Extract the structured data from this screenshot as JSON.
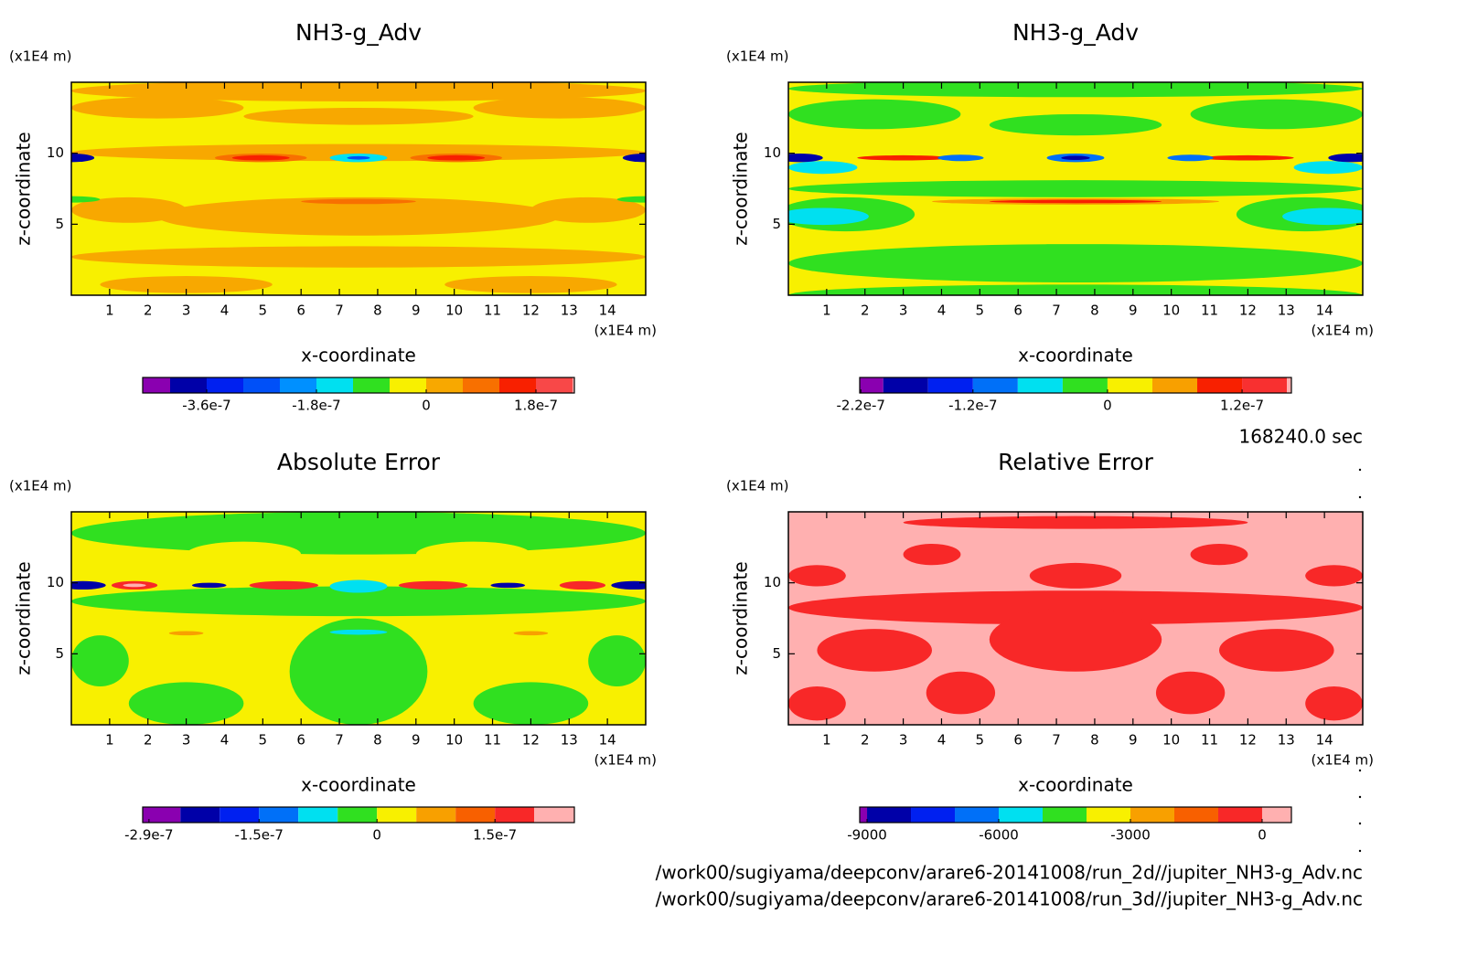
{
  "chart_data": [
    {
      "type": "contour",
      "title": "NH3-g_Adv",
      "xlabel": "x-coordinate",
      "ylabel": "z-coordinate",
      "xunit": "(x1E4 m)",
      "yunit": "(x1E4 m)",
      "xlim": [
        0,
        15
      ],
      "ylim": [
        0,
        15
      ],
      "xticks": [
        1,
        2,
        3,
        4,
        5,
        6,
        7,
        8,
        9,
        10,
        11,
        12,
        13,
        14
      ],
      "yticks": [
        5,
        10
      ],
      "colorbar": {
        "lim": [
          -4.65e-07,
          2.43e-07
        ],
        "levels": [
          -4.2e-07,
          -3.6e-07,
          -3e-07,
          -2.4e-07,
          -1.8e-07,
          -1.2e-07,
          -6e-08,
          0,
          6e-08,
          1.2e-07,
          1.8e-07,
          2.4e-07
        ],
        "colors": [
          "#8a00b0",
          "#0000a8",
          "#0020f0",
          "#0050f8",
          "#0090ff",
          "#00e0f0",
          "#30e020",
          "#f8f000",
          "#f8a800",
          "#f87000",
          "#f82000",
          "#f84848",
          "#ffb0b0"
        ],
        "ticks": [
          -3.6e-07,
          -1.8e-07,
          0,
          1.8e-07
        ]
      }
    },
    {
      "type": "contour",
      "title": "NH3-g_Adv",
      "xlabel": "x-coordinate",
      "ylabel": "z-coordinate",
      "xunit": "(x1E4 m)",
      "yunit": "(x1E4 m)",
      "xlim": [
        0,
        15
      ],
      "ylim": [
        0,
        15
      ],
      "xticks": [
        1,
        2,
        3,
        4,
        5,
        6,
        7,
        8,
        9,
        10,
        11,
        12,
        13,
        14
      ],
      "yticks": [
        5,
        10
      ],
      "colorbar": {
        "lim": [
          -2.21e-07,
          1.64e-07
        ],
        "levels": [
          -2e-07,
          -1.6e-07,
          -1.2e-07,
          -8e-08,
          -4e-08,
          0,
          4e-08,
          8e-08,
          1.2e-07,
          1.6e-07
        ],
        "colors": [
          "#8a00b0",
          "#0000a8",
          "#0020f0",
          "#0070f8",
          "#00e0f0",
          "#30e020",
          "#f8f000",
          "#f8a000",
          "#f82000",
          "#f83030",
          "#ffb0b0"
        ],
        "ticks": [
          -2.2e-07,
          -1.2e-07,
          0,
          1.2e-07
        ]
      }
    },
    {
      "type": "contour",
      "title": "Absolute Error",
      "xlabel": "x-coordinate",
      "ylabel": "z-coordinate",
      "xunit": "(x1E4 m)",
      "yunit": "(x1E4 m)",
      "xlim": [
        0,
        15
      ],
      "ylim": [
        0,
        15
      ],
      "xticks": [
        1,
        2,
        3,
        4,
        5,
        6,
        7,
        8,
        9,
        10,
        11,
        12,
        13,
        14
      ],
      "yticks": [
        5,
        10
      ],
      "colorbar": {
        "lim": [
          -2.98e-07,
          2.51e-07
        ],
        "levels": [
          -2.5e-07,
          -2e-07,
          -1.5e-07,
          -1e-07,
          -5e-08,
          0,
          5e-08,
          1e-07,
          1.5e-07,
          2e-07
        ],
        "colors": [
          "#8a00b0",
          "#0000a8",
          "#0020f0",
          "#0070f8",
          "#00e0f0",
          "#30e020",
          "#f8f000",
          "#f8a000",
          "#f86000",
          "#f82828",
          "#ffb0b0"
        ],
        "ticks": [
          -2.9e-07,
          -1.5e-07,
          0,
          1.5e-07
        ]
      }
    },
    {
      "type": "contour",
      "title": "Relative Error",
      "xlabel": "x-coordinate",
      "ylabel": "z-coordinate",
      "xunit": "(x1E4 m)",
      "yunit": "(x1E4 m)",
      "xlim": [
        0,
        15
      ],
      "ylim": [
        0,
        15
      ],
      "xticks": [
        1,
        2,
        3,
        4,
        5,
        6,
        7,
        8,
        9,
        10,
        11,
        12,
        13,
        14
      ],
      "yticks": [
        5,
        10
      ],
      "colorbar": {
        "lim": [
          -9167,
          667
        ],
        "levels": [
          -9000,
          -8000,
          -7000,
          -6000,
          -5000,
          -4000,
          -3000,
          -2000,
          -1000,
          0
        ],
        "colors": [
          "#8a00b0",
          "#0000a8",
          "#0020f0",
          "#0070f8",
          "#00e0f0",
          "#30e020",
          "#f8f000",
          "#f8a000",
          "#f86000",
          "#f82828",
          "#ffb0b0"
        ],
        "ticks": [
          -9000,
          -6000,
          -3000,
          0
        ]
      }
    }
  ],
  "footer": {
    "time": "168240.0 sec",
    "files": [
      "/work00/sugiyama/deepconv/arare6-20141008/run_2d//jupiter_NH3-g_Adv.nc",
      "/work00/sugiyama/deepconv/arare6-20141008/run_3d//jupiter_NH3-g_Adv.nc"
    ]
  }
}
